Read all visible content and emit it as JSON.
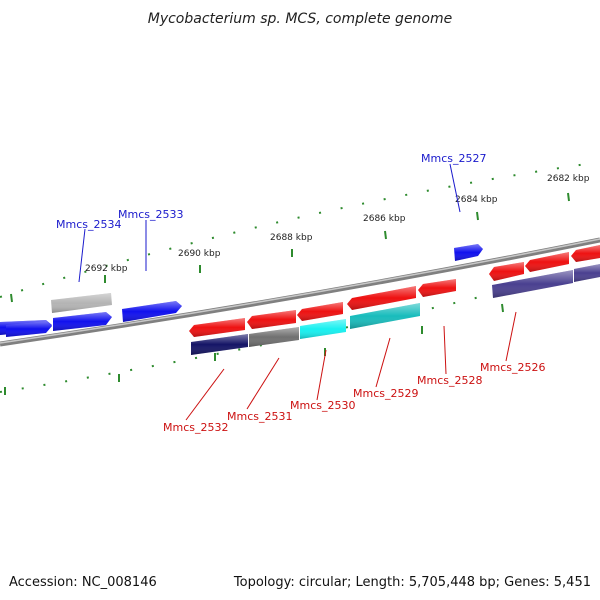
{
  "title": "Mycobacterium sp. MCS, complete genome",
  "footer": {
    "accession": "Accession: NC_008146",
    "summary": "Topology: circular; Length: 5,705,448 bp; Genes: 5,451"
  },
  "colors": {
    "backbone": "#808080",
    "tick": "#2e8b2e",
    "forward_label": "#1a1acc",
    "reverse_label": "#cc1111",
    "gene_blue": "#1010ee",
    "gene_red": "#ee1111",
    "gene_gray": "#b4b4b4",
    "feat_navy": "#141466",
    "feat_gray": "#707070",
    "feat_cyan": "#18f0f0",
    "feat_teal": "#18bcbc",
    "feat_slate": "#4a4090"
  },
  "tick_labels": [
    "2692 kbp",
    "2690 kbp",
    "2688 kbp",
    "2686 kbp",
    "2684 kbp",
    "2682 kbp"
  ],
  "gene_labels": {
    "forward": [
      "Mmcs_2534",
      "Mmcs_2533",
      "Mmcs_2527"
    ],
    "reverse": [
      "Mmcs_2532",
      "Mmcs_2531",
      "Mmcs_2530",
      "Mmcs_2529",
      "Mmcs_2528",
      "Mmcs_2526"
    ]
  }
}
